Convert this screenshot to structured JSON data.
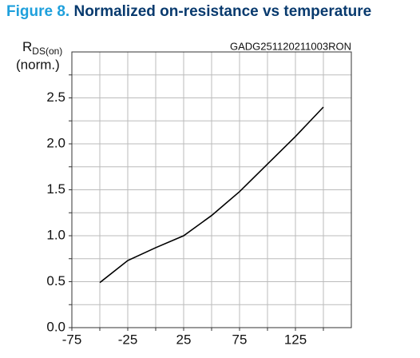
{
  "chart_data": {
    "type": "line",
    "title_prefix": "Figure 8.",
    "title": "Normalized on-resistance vs temperature",
    "y_label_symbol": "R",
    "y_label_subscript": "DS(on)",
    "y_label_unit": "(norm.)",
    "annotation": "GADG251120211003RON",
    "x": [
      -50,
      -25,
      0,
      25,
      50,
      75,
      100,
      125,
      150
    ],
    "series": [
      {
        "color": "#000000",
        "values": [
          0.49,
          0.73,
          0.87,
          1.0,
          1.22,
          1.48,
          1.78,
          2.08,
          2.4
        ]
      }
    ],
    "xlim": [
      -75,
      175
    ],
    "xticks": [
      -75,
      {
        "value": -50,
        "label": null
      },
      -25,
      {
        "value": 0,
        "label": null
      },
      25,
      {
        "value": 50,
        "label": null
      },
      75,
      {
        "value": 100,
        "label": null
      },
      125,
      {
        "value": 150,
        "label": null
      }
    ],
    "ylim": [
      0,
      3
    ],
    "yticks": [
      {
        "value": 0,
        "label": "0.0"
      },
      {
        "value": 0.25,
        "label": null
      },
      0.5,
      {
        "value": 0.75,
        "label": null
      },
      {
        "value": 1,
        "label": "1.0"
      },
      {
        "value": 1.25,
        "label": null
      },
      1.5,
      {
        "value": 1.75,
        "label": null
      },
      {
        "value": 2,
        "label": "2.0"
      },
      {
        "value": 2.25,
        "label": null
      },
      2.5,
      {
        "value": 2.75,
        "label": null
      }
    ],
    "grid": true
  }
}
